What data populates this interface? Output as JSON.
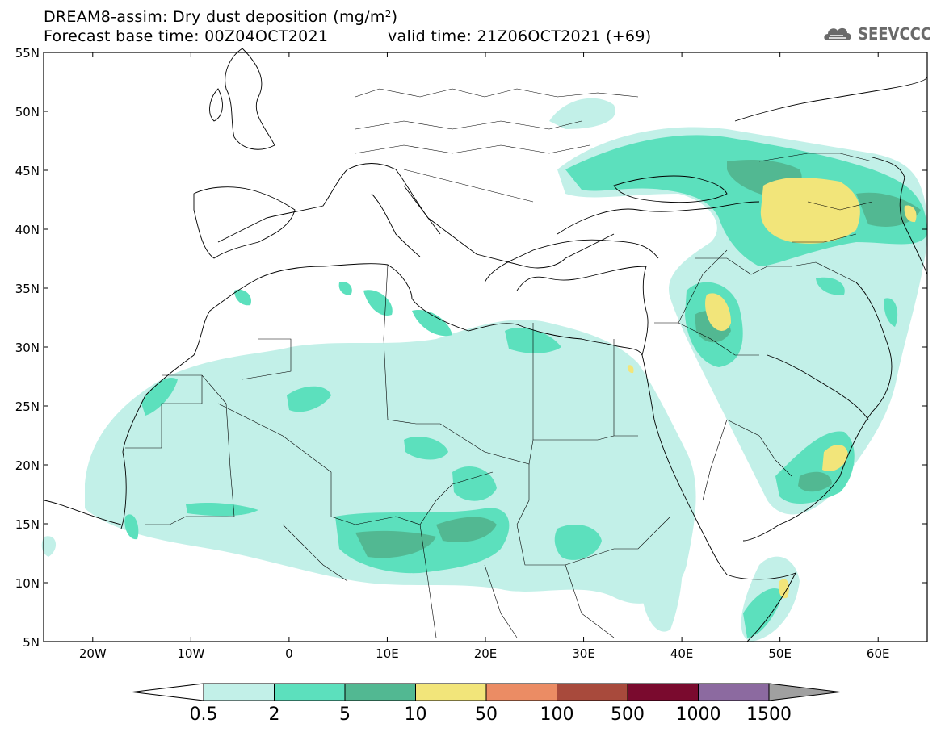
{
  "header": {
    "title_line1": "DREAM8-assim: Dry dust deposition (mg/m²)",
    "base_time": "Forecast base time: 00Z04OCT2021",
    "valid_time": "valid time: 21Z06OCT2021 (+69)",
    "logo_text": "SEEVCCC",
    "logo_icon": "cloud-icon"
  },
  "map": {
    "lon_range": [
      -25,
      65
    ],
    "lat_range": [
      5,
      55
    ],
    "lon_ticks": [
      "20W",
      "10W",
      "0",
      "10E",
      "20E",
      "30E",
      "40E",
      "50E",
      "60E"
    ],
    "lat_ticks": [
      "55N",
      "50N",
      "45N",
      "40N",
      "35N",
      "30N",
      "25N",
      "20N",
      "15N",
      "10N",
      "5N"
    ]
  },
  "legend": {
    "labels": [
      "0.5",
      "2",
      "5",
      "10",
      "50",
      "100",
      "500",
      "1000",
      "1500"
    ],
    "colors": [
      "#c2f0e8",
      "#5ce0bd",
      "#52b892",
      "#f2e57a",
      "#eb8c64",
      "#a84a3c",
      "#7a0a2e",
      "#8c6aa0",
      "#a0a0a0"
    ]
  }
}
